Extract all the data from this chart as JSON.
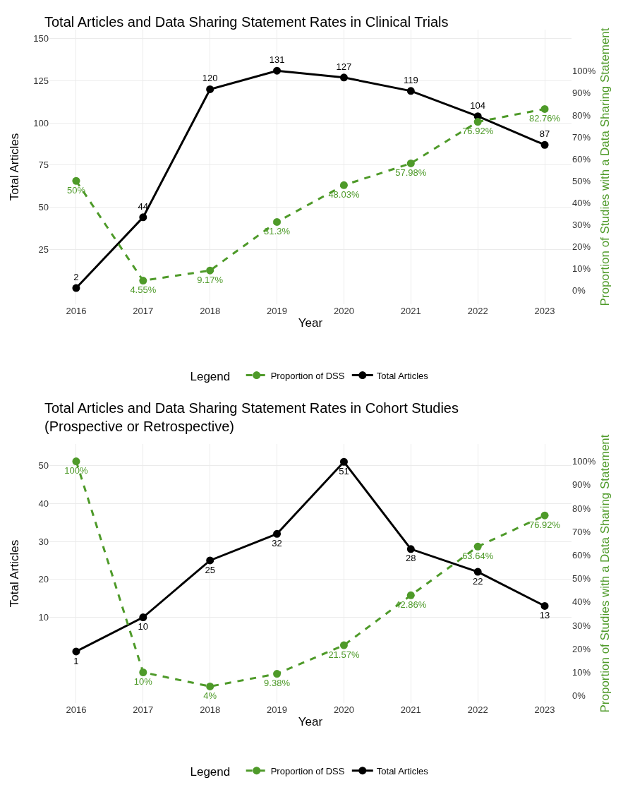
{
  "chart_data": [
    {
      "type": "line",
      "title": "Total Articles and Data Sharing Statement Rates in Clinical Trials",
      "xlabel": "Year",
      "ylabel": "Total Articles",
      "y2label": "Proportion of Studies with a Data Sharing Statement",
      "legend_title": "Legend",
      "legend": "bottom",
      "grid": true,
      "marker": "circle",
      "categories": [
        "2016",
        "2017",
        "2018",
        "2019",
        "2020",
        "2021",
        "2022",
        "2023"
      ],
      "ylim": [
        -7.6,
        155.4
      ],
      "yticks": [
        25,
        50,
        75,
        100,
        125,
        150
      ],
      "y2lim": [
        -6.2,
        118.9
      ],
      "y2ticks": [
        {
          "value": 0,
          "label": "0%"
        },
        {
          "value": 10,
          "label": "10%"
        },
        {
          "value": 20,
          "label": "20%"
        },
        {
          "value": 30,
          "label": "30%"
        },
        {
          "value": 40,
          "label": "40%"
        },
        {
          "value": 50,
          "label": "50%"
        },
        {
          "value": 60,
          "label": "60%"
        },
        {
          "value": 70,
          "label": "70%"
        },
        {
          "value": 80,
          "label": "80%"
        },
        {
          "value": 90,
          "label": "90%"
        },
        {
          "value": 100,
          "label": "100%"
        }
      ],
      "series": [
        {
          "name": "Proportion of DSS",
          "color": "#4e9a29",
          "axis": "y2",
          "line_style": "dashed",
          "values": [
            50,
            4.55,
            9.17,
            31.3,
            48.03,
            57.98,
            76.92,
            82.76
          ],
          "value_labels": [
            "50%",
            "4.55%",
            "9.17%",
            "31.3%",
            "48.03%",
            "57.98%",
            "76.92%",
            "82.76%"
          ]
        },
        {
          "name": "Total Articles",
          "color": "#000000",
          "line_style": "solid",
          "values": [
            2,
            44,
            120,
            131,
            127,
            119,
            104,
            87
          ],
          "value_labels": [
            "2",
            "44",
            "120",
            "131",
            "127",
            "119",
            "104",
            "87"
          ]
        }
      ]
    },
    {
      "type": "line",
      "title": "Total Articles and Data Sharing Statement Rates in Cohort Studies\n(Prospective or Retrospective)",
      "xlabel": "Year",
      "ylabel": "Total Articles",
      "y2label": "Proportion of Studies with a Data Sharing Statement",
      "legend_title": "Legend",
      "legend": "bottom",
      "grid": true,
      "marker": "circle",
      "categories": [
        "2016",
        "2017",
        "2018",
        "2019",
        "2020",
        "2021",
        "2022",
        "2023"
      ],
      "ylim": [
        -12.6,
        55.7
      ],
      "yticks": [
        10,
        20,
        30,
        40,
        50
      ],
      "y2lim": [
        -3.1,
        107.4
      ],
      "y2ticks": [
        {
          "value": 0,
          "label": "0%"
        },
        {
          "value": 10,
          "label": "10%"
        },
        {
          "value": 20,
          "label": "20%"
        },
        {
          "value": 30,
          "label": "30%"
        },
        {
          "value": 40,
          "label": "40%"
        },
        {
          "value": 50,
          "label": "50%"
        },
        {
          "value": 60,
          "label": "60%"
        },
        {
          "value": 70,
          "label": "70%"
        },
        {
          "value": 80,
          "label": "80%"
        },
        {
          "value": 90,
          "label": "90%"
        },
        {
          "value": 100,
          "label": "100%"
        }
      ],
      "series": [
        {
          "name": "Proportion of DSS",
          "color": "#4e9a29",
          "axis": "y2",
          "line_style": "dashed",
          "values": [
            100,
            10,
            4,
            9.38,
            21.57,
            42.86,
            63.64,
            76.92
          ],
          "value_labels": [
            "100%",
            "10%",
            "4%",
            "9.38%",
            "21.57%",
            "42.86%",
            "63.64%",
            "76.92%"
          ]
        },
        {
          "name": "Total Articles",
          "color": "#000000",
          "line_style": "solid",
          "values": [
            1,
            10,
            25,
            32,
            51,
            28,
            22,
            13
          ],
          "value_labels": [
            "1",
            "10",
            "25",
            "32",
            "51",
            "28",
            "22",
            "13"
          ]
        }
      ]
    }
  ]
}
